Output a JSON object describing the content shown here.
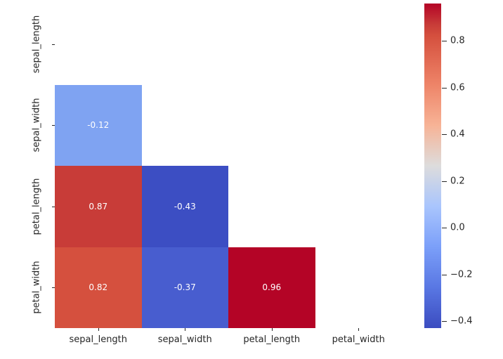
{
  "figure": {
    "background": "#ffffff",
    "axis_text_color": "#262626",
    "annotation_text_color": "#ffffff"
  },
  "chart_data": {
    "type": "heatmap",
    "title": "",
    "description": "Lower-triangle correlation matrix heatmap of iris features, coolwarm colormap, diagonal and upper triangle masked",
    "categories": [
      "sepal_length",
      "sepal_width",
      "petal_length",
      "petal_width"
    ],
    "x_tick_labels": [
      "sepal_length",
      "sepal_width",
      "petal_length",
      "petal_width"
    ],
    "y_tick_labels": [
      "sepal_length",
      "sepal_width",
      "petal_length",
      "petal_width"
    ],
    "matrix": [
      [
        null,
        null,
        null,
        null
      ],
      [
        -0.12,
        null,
        null,
        null
      ],
      [
        0.87,
        -0.43,
        null,
        null
      ],
      [
        0.82,
        -0.37,
        0.96,
        null
      ]
    ],
    "cells": [
      {
        "row": 1,
        "col": 0,
        "value": -0.12,
        "label": "-0.12",
        "color": "#7fa3f2"
      },
      {
        "row": 2,
        "col": 0,
        "value": 0.87,
        "label": "0.87",
        "color": "#c83c38"
      },
      {
        "row": 2,
        "col": 1,
        "value": -0.43,
        "label": "-0.43",
        "color": "#3c4ec3"
      },
      {
        "row": 3,
        "col": 0,
        "value": 0.82,
        "label": "0.82",
        "color": "#d5503e"
      },
      {
        "row": 3,
        "col": 1,
        "value": -0.37,
        "label": "-0.37",
        "color": "#485dcf"
      },
      {
        "row": 3,
        "col": 2,
        "value": 0.96,
        "label": "0.96",
        "color": "#b40426"
      }
    ],
    "colorbar": {
      "colormap": "coolwarm",
      "vmin": -0.43,
      "vmax": 0.96,
      "ticks": [
        {
          "value": 0.8,
          "label": "0.8"
        },
        {
          "value": 0.6,
          "label": "0.6"
        },
        {
          "value": 0.4,
          "label": "0.4"
        },
        {
          "value": 0.2,
          "label": "0.2"
        },
        {
          "value": 0.0,
          "label": "0.0"
        },
        {
          "value": -0.2,
          "label": "−0.2"
        },
        {
          "value": -0.4,
          "label": "−0.4"
        }
      ],
      "gradient_stops": [
        {
          "pos": 0,
          "color": "#b40426"
        },
        {
          "pos": 6.5,
          "color": "#c83c38"
        },
        {
          "pos": 10,
          "color": "#d5503e"
        },
        {
          "pos": 25,
          "color": "#ee8468"
        },
        {
          "pos": 37.5,
          "color": "#f7b396"
        },
        {
          "pos": 50,
          "color": "#dddcdc"
        },
        {
          "pos": 62.5,
          "color": "#a9c5fd"
        },
        {
          "pos": 75,
          "color": "#7b9ff9"
        },
        {
          "pos": 87.5,
          "color": "#5977e3"
        },
        {
          "pos": 100,
          "color": "#3b4cc0"
        }
      ]
    }
  }
}
